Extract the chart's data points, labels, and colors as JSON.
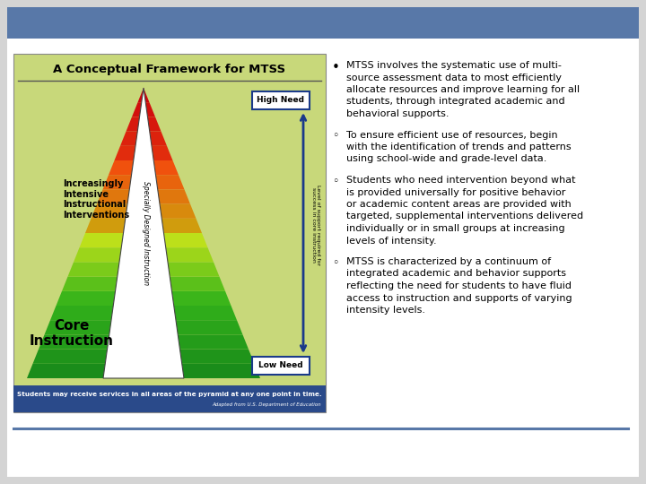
{
  "bg_color": "#d4d4d4",
  "header_color": "#5878a8",
  "slide_bg": "#ffffff",
  "image_bg": "#c8d87a",
  "image_title": "A Conceptual Framework for MTSS",
  "image_footer_text": "Students may receive services in all areas of the pyramid at any one point in time.",
  "image_footer_text2": "Adapted from U.S. Department of Education",
  "core_text": "Core\nInstruction",
  "intervention_text": "Increasingly\nIntensive\nInstructional\nInterventions",
  "specially_text": "Specially Designed Instruction",
  "high_need_text": "High Need",
  "low_need_text": "Low Need",
  "level_text": "Level of support required for\nsuccess in core instruction",
  "bullet1": "MTSS involves the systematic use of multi-\nsource assessment data to most efficiently\nallocate resources and improve learning for all\nstudents, through integrated academic and\nbehavioral supports.",
  "bullet2": "To ensure efficient use of resources, begin\nwith the identification of trends and patterns\nusing school-wide and grade-level data.",
  "bullet3": "Students who need intervention beyond what\nis provided universally for positive behavior\nor academic content areas are provided with\ntargeted, supplemental interventions delivered\nindividually or in small groups at increasing\nlevels of intensity.",
  "bullet4": "MTSS is characterized by a continuum of\nintegrated academic and behavior supports\nreflecting the need for students to have fluid\naccess to instruction and supports of varying\nintensity levels.",
  "divider_color": "#5878a8",
  "arrow_color": "#1a3a8a",
  "footer_bg": "#2a4a8a"
}
